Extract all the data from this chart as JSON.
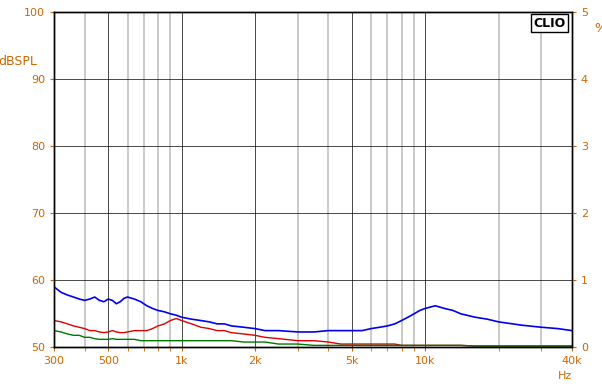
{
  "title": "",
  "ylabel_left": "dBSPL",
  "ylabel_right": "%",
  "xlabel": "Hz",
  "clio_label": "CLIO",
  "ylim_left": [
    50,
    100
  ],
  "ylim_right": [
    0,
    5
  ],
  "xlim": [
    300,
    40000
  ],
  "yticks_left": [
    50,
    60,
    70,
    80,
    90,
    100
  ],
  "yticks_right": [
    0,
    1,
    2,
    3,
    4,
    5
  ],
  "xticks": [
    300,
    500,
    1000,
    2000,
    5000,
    10000,
    40000
  ],
  "xticklabels": [
    "300",
    "500",
    "1k",
    "2k",
    "5k",
    "10k",
    "40k"
  ],
  "bg_color": "#ffffff",
  "grid_color": "#000000",
  "axis_color": "#000000",
  "label_color": "#cc6600",
  "blue_color": "#0000ee",
  "red_color": "#dd0000",
  "green_color": "#007700",
  "blue_linewidth": 1.2,
  "red_linewidth": 1.0,
  "green_linewidth": 1.0,
  "blue_data": {
    "freq": [
      300,
      320,
      340,
      360,
      380,
      400,
      420,
      440,
      460,
      480,
      500,
      520,
      540,
      560,
      580,
      600,
      640,
      680,
      720,
      760,
      800,
      850,
      900,
      950,
      1000,
      1100,
      1200,
      1300,
      1400,
      1500,
      1600,
      1800,
      2000,
      2200,
      2500,
      3000,
      3500,
      4000,
      4500,
      5000,
      5500,
      6000,
      6500,
      7000,
      7500,
      8000,
      8500,
      9000,
      9500,
      10000,
      11000,
      12000,
      13000,
      14000,
      16000,
      18000,
      20000,
      25000,
      30000,
      35000,
      40000
    ],
    "val": [
      59.0,
      58.2,
      57.8,
      57.5,
      57.2,
      57.0,
      57.2,
      57.5,
      57.0,
      56.8,
      57.2,
      57.0,
      56.5,
      56.8,
      57.3,
      57.5,
      57.2,
      56.8,
      56.2,
      55.8,
      55.5,
      55.3,
      55.0,
      54.8,
      54.5,
      54.2,
      54.0,
      53.8,
      53.5,
      53.5,
      53.2,
      53.0,
      52.8,
      52.5,
      52.5,
      52.3,
      52.3,
      52.5,
      52.5,
      52.5,
      52.5,
      52.8,
      53.0,
      53.2,
      53.5,
      54.0,
      54.5,
      55.0,
      55.5,
      55.8,
      56.2,
      55.8,
      55.5,
      55.0,
      54.5,
      54.2,
      53.8,
      53.3,
      53.0,
      52.8,
      52.5
    ]
  },
  "red_data": {
    "freq": [
      300,
      320,
      340,
      360,
      380,
      400,
      420,
      440,
      460,
      480,
      500,
      520,
      540,
      560,
      580,
      600,
      640,
      680,
      720,
      760,
      800,
      850,
      900,
      950,
      1000,
      1100,
      1200,
      1300,
      1400,
      1500,
      1600,
      1800,
      2000,
      2200,
      2500,
      3000,
      3500,
      4000,
      4500,
      5000,
      5500,
      6000,
      6500,
      7000,
      7500,
      8000,
      8500,
      9000,
      9500,
      10000,
      11000,
      12000,
      13000,
      14000,
      16000,
      18000,
      20000,
      25000,
      30000,
      35000,
      40000
    ],
    "val": [
      54.0,
      53.8,
      53.5,
      53.2,
      53.0,
      52.8,
      52.5,
      52.5,
      52.3,
      52.2,
      52.3,
      52.5,
      52.3,
      52.2,
      52.2,
      52.3,
      52.5,
      52.5,
      52.5,
      52.8,
      53.2,
      53.5,
      54.0,
      54.3,
      54.0,
      53.5,
      53.0,
      52.8,
      52.5,
      52.5,
      52.2,
      52.0,
      51.8,
      51.5,
      51.3,
      51.0,
      51.0,
      50.8,
      50.5,
      50.5,
      50.5,
      50.5,
      50.5,
      50.5,
      50.5,
      50.3,
      50.3,
      50.3,
      50.3,
      50.3,
      50.3,
      50.3,
      50.3,
      50.3,
      50.2,
      50.2,
      50.2,
      50.2,
      50.2,
      50.2,
      50.2
    ]
  },
  "green_data": {
    "freq": [
      300,
      320,
      340,
      360,
      380,
      400,
      420,
      440,
      460,
      480,
      500,
      520,
      540,
      560,
      580,
      600,
      640,
      680,
      720,
      760,
      800,
      850,
      900,
      950,
      1000,
      1100,
      1200,
      1300,
      1400,
      1500,
      1600,
      1800,
      2000,
      2200,
      2500,
      3000,
      3500,
      4000,
      4500,
      5000,
      5500,
      6000,
      6500,
      7000,
      7500,
      8000,
      8500,
      9000,
      9500,
      10000,
      11000,
      12000,
      13000,
      14000,
      16000,
      18000,
      20000,
      25000,
      30000,
      35000,
      40000
    ],
    "val": [
      52.5,
      52.3,
      52.0,
      51.8,
      51.8,
      51.5,
      51.5,
      51.3,
      51.2,
      51.2,
      51.2,
      51.3,
      51.2,
      51.2,
      51.2,
      51.2,
      51.2,
      51.0,
      51.0,
      51.0,
      51.0,
      51.0,
      51.0,
      51.0,
      51.0,
      51.0,
      51.0,
      51.0,
      51.0,
      51.0,
      51.0,
      50.8,
      50.8,
      50.8,
      50.5,
      50.5,
      50.3,
      50.3,
      50.3,
      50.3,
      50.3,
      50.3,
      50.3,
      50.3,
      50.3,
      50.3,
      50.3,
      50.3,
      50.3,
      50.3,
      50.3,
      50.3,
      50.3,
      50.3,
      50.2,
      50.2,
      50.2,
      50.2,
      50.2,
      50.2,
      50.2
    ]
  }
}
